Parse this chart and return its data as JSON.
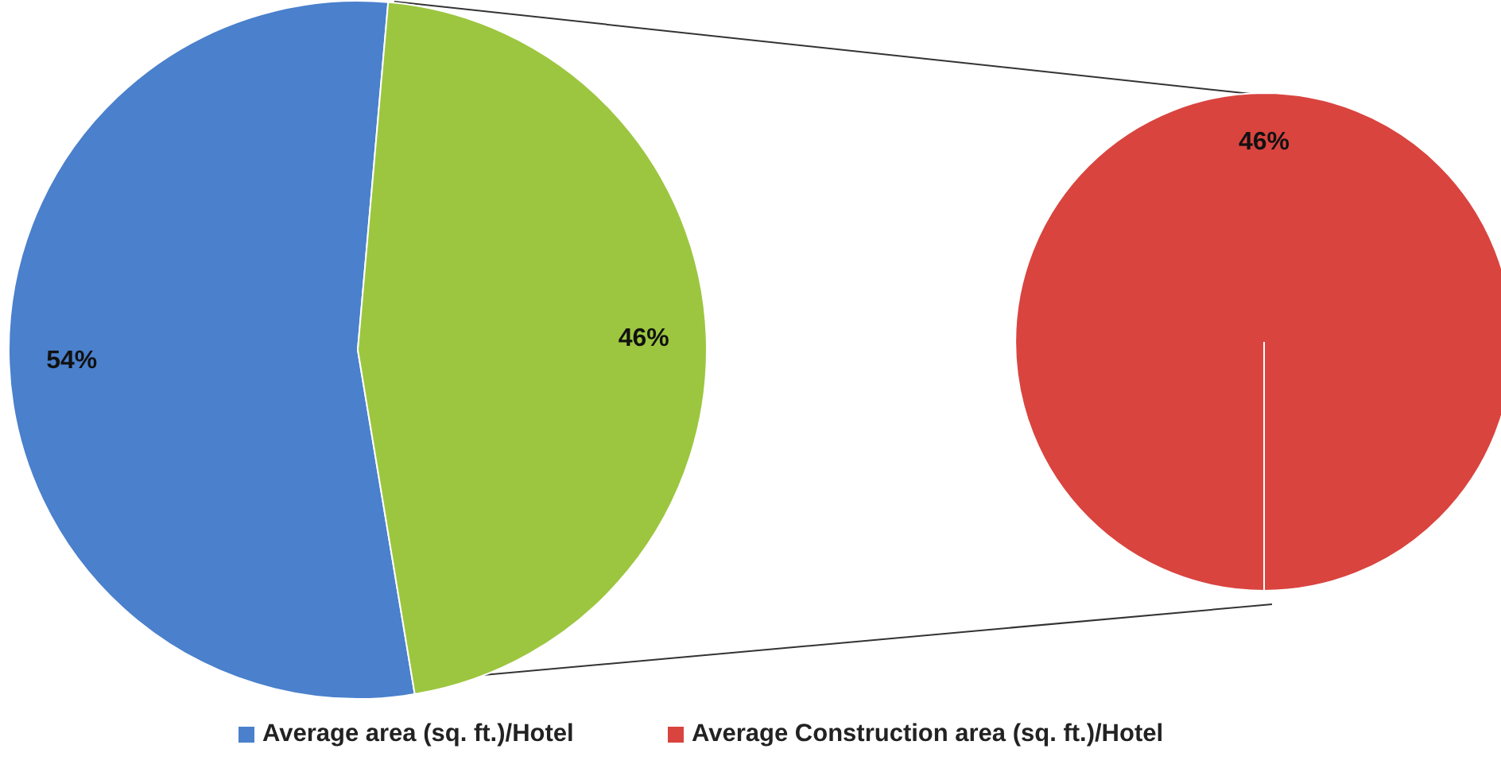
{
  "chart_data": [
    {
      "type": "pie",
      "categories": [
        "Average area (sq. ft.)/Hotel",
        null
      ],
      "values": [
        54,
        46
      ],
      "colors": [
        "#4a80cc",
        "#9cc63f"
      ],
      "value_labels": [
        "54%",
        "46%"
      ],
      "legend": "bottom"
    },
    {
      "type": "pie",
      "categories": [
        "Average Construction area (sq. ft.)/Hotel"
      ],
      "values": [
        46
      ],
      "colors": [
        "#d9443f"
      ],
      "value_labels": [
        "46%"
      ],
      "legend": "bottom"
    }
  ]
}
